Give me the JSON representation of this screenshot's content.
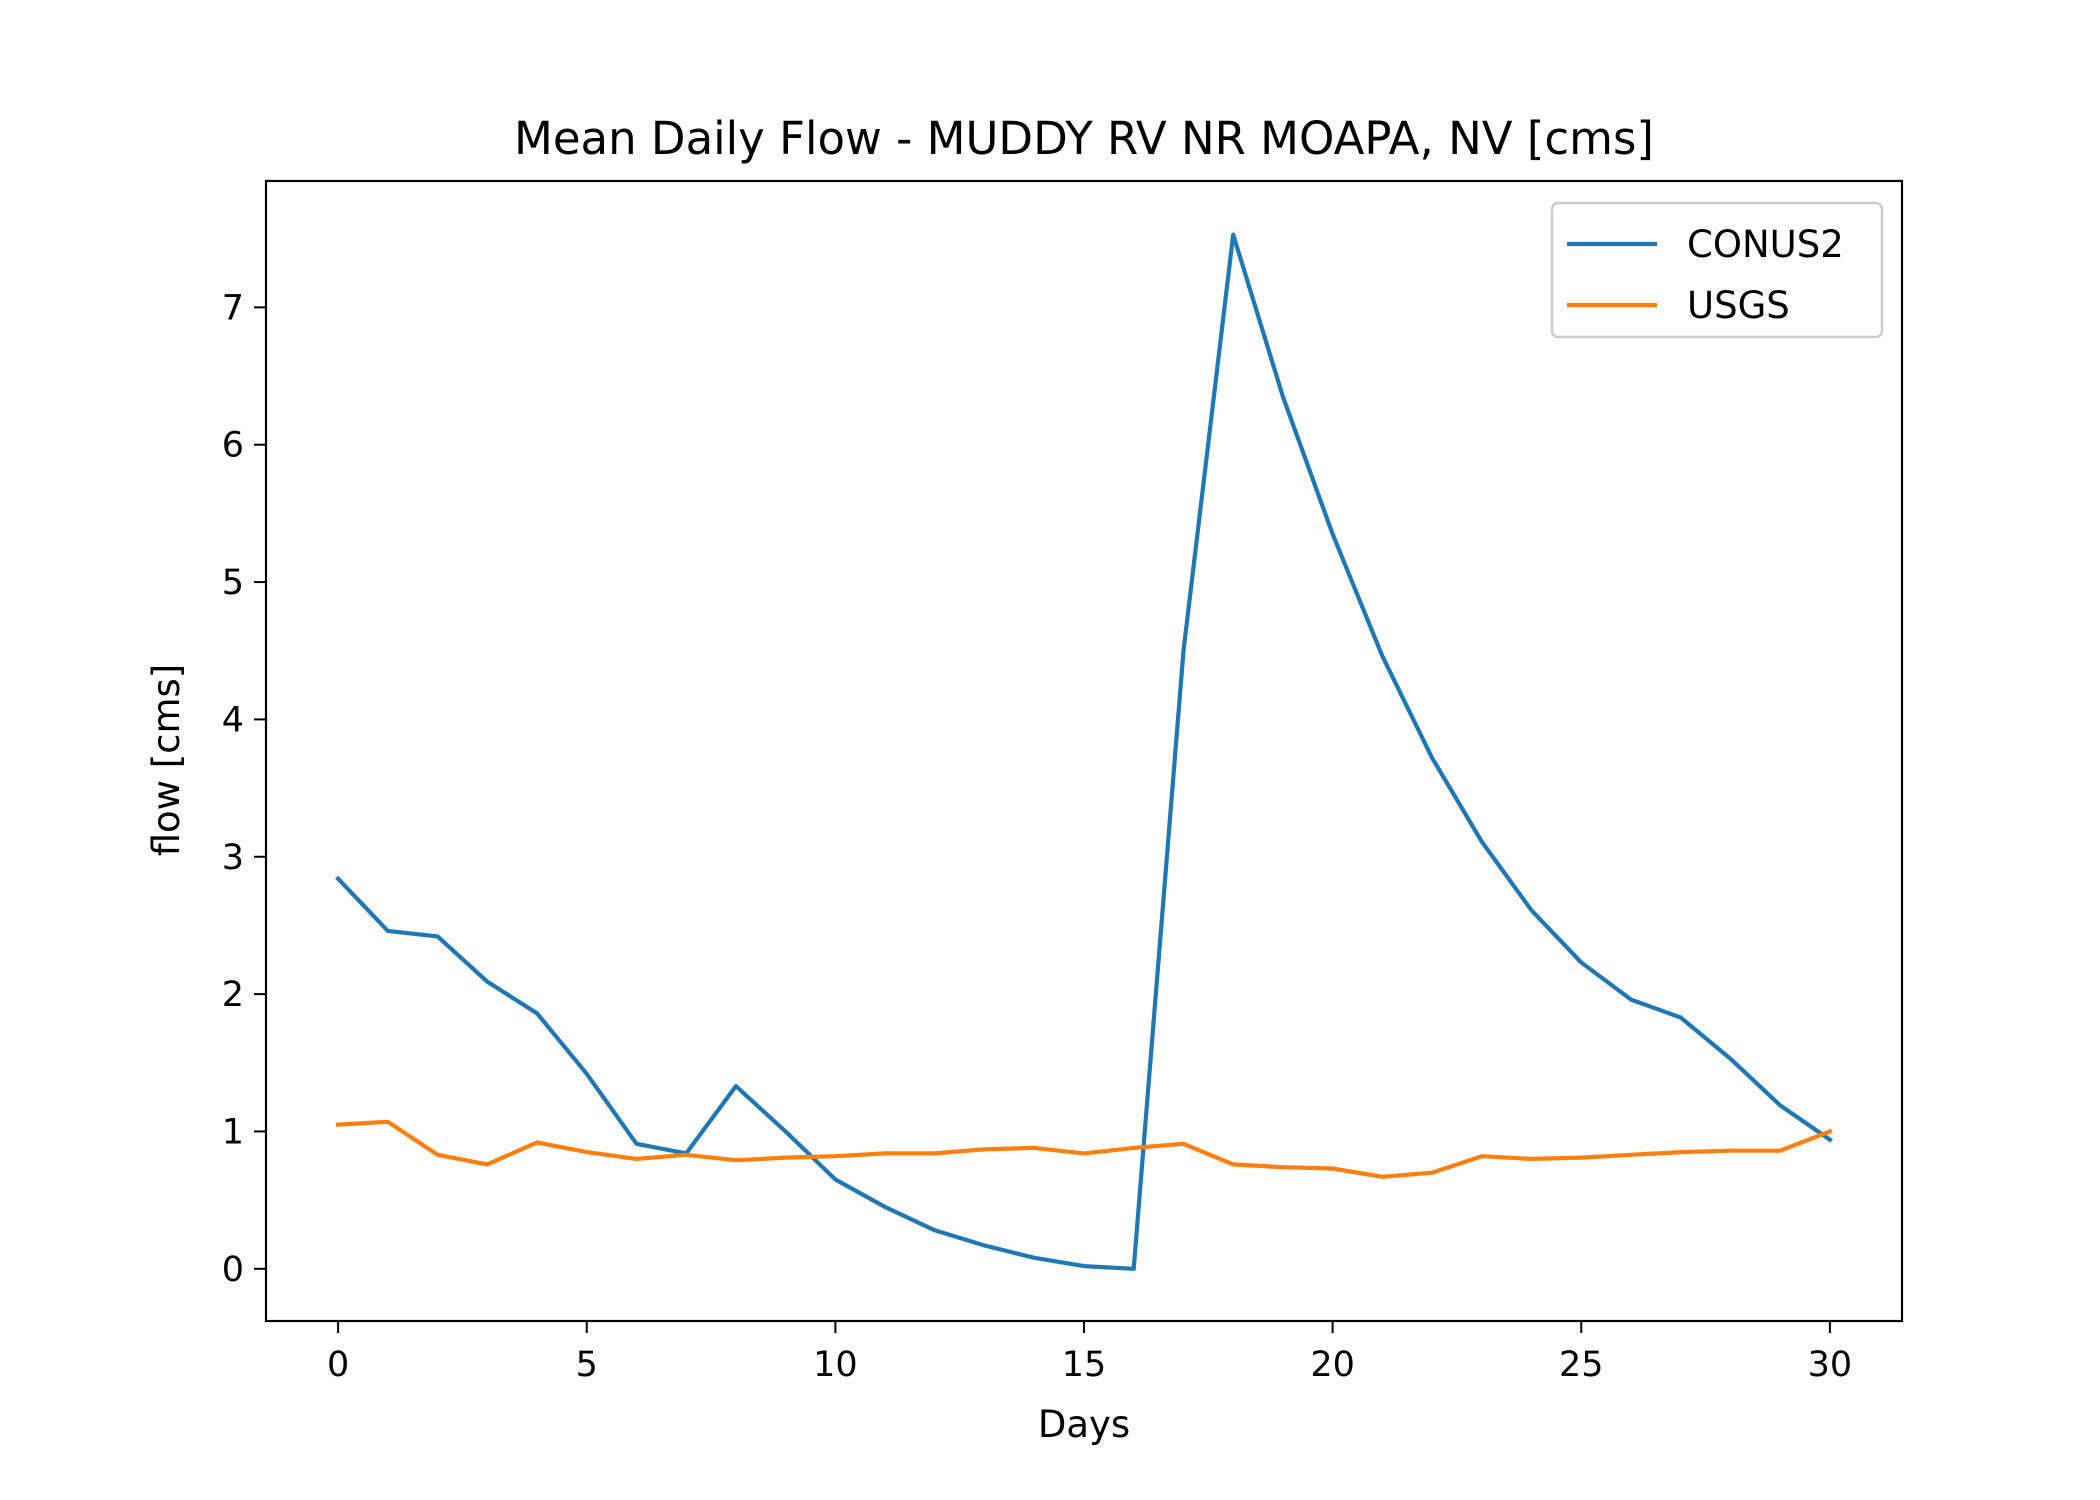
{
  "chart_data": {
    "type": "line",
    "title": "Mean Daily Flow - MUDDY RV NR MOAPA, NV [cms]",
    "xlabel": "Days",
    "ylabel": "flow [cms]",
    "xlim": [
      -1.45,
      31.45
    ],
    "ylim": [
      -0.38,
      7.92
    ],
    "xticks": [
      0,
      5,
      10,
      15,
      20,
      25,
      30
    ],
    "yticks": [
      0,
      1,
      2,
      3,
      4,
      5,
      6,
      7
    ],
    "grid": false,
    "legend_position": "top-right",
    "x": [
      0,
      1,
      2,
      3,
      4,
      5,
      6,
      7,
      8,
      9,
      10,
      11,
      12,
      13,
      14,
      15,
      16,
      17,
      18,
      19,
      20,
      21,
      22,
      23,
      24,
      25,
      26,
      27,
      28,
      29,
      30
    ],
    "series": [
      {
        "name": "CONUS2",
        "color": "#1f77b4",
        "values": [
          2.84,
          2.46,
          2.42,
          2.09,
          1.86,
          1.42,
          0.91,
          0.84,
          1.33,
          1.0,
          0.65,
          0.45,
          0.28,
          0.17,
          0.08,
          0.02,
          0.0,
          4.5,
          7.53,
          6.35,
          5.35,
          4.46,
          3.72,
          3.11,
          2.61,
          2.23,
          1.96,
          1.83,
          1.53,
          1.19,
          0.94
        ]
      },
      {
        "name": "USGS",
        "color": "#ff7f0e",
        "values": [
          1.05,
          1.07,
          0.83,
          0.76,
          0.92,
          0.85,
          0.8,
          0.83,
          0.79,
          0.81,
          0.82,
          0.84,
          0.84,
          0.87,
          0.88,
          0.84,
          0.88,
          0.91,
          0.76,
          0.74,
          0.73,
          0.67,
          0.7,
          0.82,
          0.8,
          0.81,
          0.83,
          0.85,
          0.86,
          0.86,
          1.0
        ]
      }
    ]
  }
}
